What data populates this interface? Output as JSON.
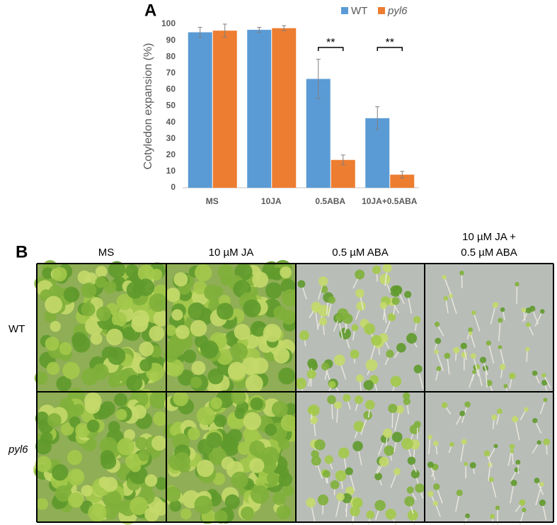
{
  "chart_data": {
    "type": "bar",
    "title": "A",
    "y_label": "Cotyledon expansion (%)",
    "categories": [
      "MS",
      "10JA",
      "0.5ABA",
      "10JA+0.5ABA"
    ],
    "series": [
      {
        "name": "WT",
        "color": "#5b9bd5",
        "values": [
          95,
          96.5,
          66.5,
          42.5
        ],
        "errors": [
          3,
          1.5,
          12,
          7
        ]
      },
      {
        "name": "pyl6",
        "color": "#ed7d31",
        "values": [
          96,
          97.5,
          17,
          8
        ],
        "errors": [
          4,
          1.5,
          3,
          2
        ]
      }
    ],
    "annotations": [
      {
        "text": "**",
        "category": "0.5ABA"
      },
      {
        "text": "**",
        "category": "10JA+0.5ABA"
      }
    ],
    "ylim": [
      0,
      100
    ],
    "yticks": [
      0,
      10,
      20,
      30,
      40,
      50,
      60,
      70,
      80,
      90,
      100
    ],
    "grid": false,
    "legend": "top-right"
  },
  "panel_b": {
    "label": "B",
    "columns": [
      [
        "MS"
      ],
      [
        "10 µM JA"
      ],
      [
        "0.5 µM ABA"
      ],
      [
        "10 µM JA +",
        "0.5 µM ABA"
      ]
    ],
    "rows": [
      "WT",
      "pyl6"
    ]
  }
}
